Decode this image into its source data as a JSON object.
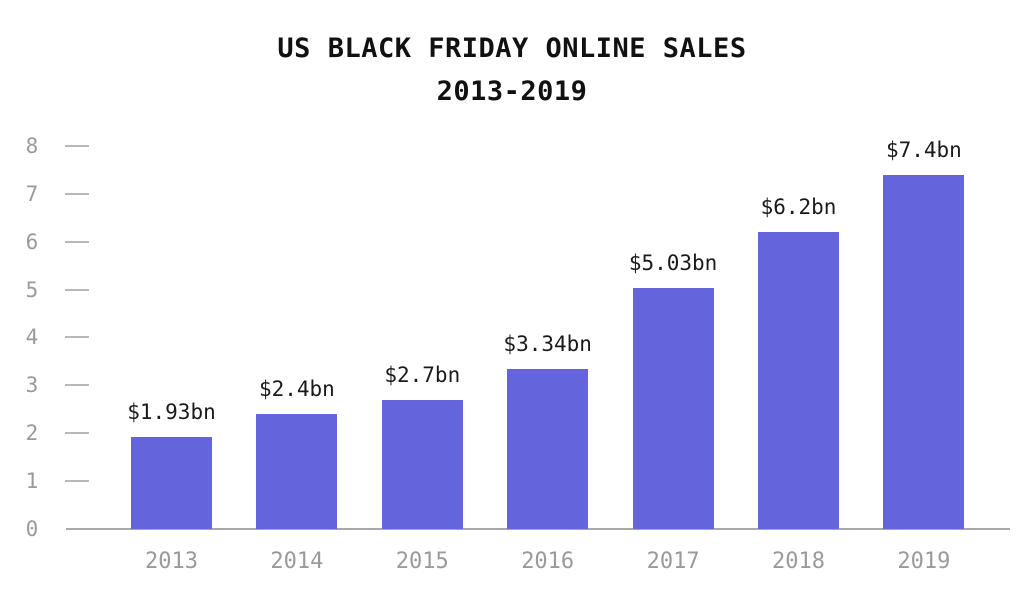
{
  "chart_data": {
    "type": "bar",
    "title": "US BLACK FRIDAY ONLINE SALES 2013-2019",
    "title_lines": [
      "US BLACK FRIDAY ONLINE SALES",
      "2013-2019"
    ],
    "xlabel": "",
    "ylabel": "",
    "categories": [
      "2013",
      "2014",
      "2015",
      "2016",
      "2017",
      "2018",
      "2019"
    ],
    "values": [
      1.93,
      2.4,
      2.7,
      3.34,
      5.03,
      6.2,
      7.4
    ],
    "data_labels": [
      "$1.93bn",
      "$2.4bn",
      "$2.7bn",
      "$3.34bn",
      "$5.03bn",
      "$6.2bn",
      "$7.4bn"
    ],
    "yticks": [
      "0",
      "1",
      "2",
      "3",
      "4",
      "5",
      "6",
      "7",
      "8"
    ],
    "ylim": [
      0,
      8
    ],
    "grid": false,
    "legend": null,
    "bar_color": "#6464dc",
    "units": "USD billions"
  }
}
